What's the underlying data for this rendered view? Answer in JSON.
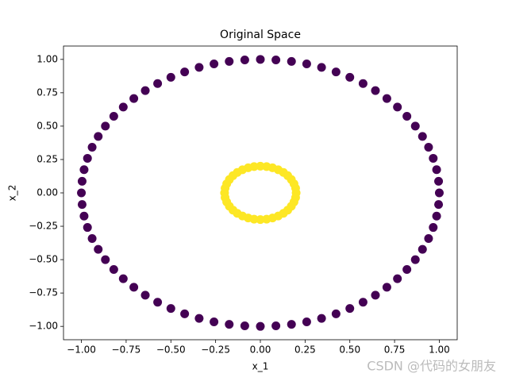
{
  "chart_data": {
    "type": "scatter",
    "title": "Original Space",
    "xlabel": "x_1",
    "ylabel": "x_2",
    "xlim": [
      -1.1,
      1.1
    ],
    "ylim": [
      -1.1,
      1.1
    ],
    "xticks": [
      {
        "value": -1,
        "label": "−1.00"
      },
      {
        "value": -0.75,
        "label": "−0.75"
      },
      {
        "value": -0.5,
        "label": "−0.50"
      },
      {
        "value": -0.25,
        "label": "−0.25"
      },
      {
        "value": 0,
        "label": "0.00"
      },
      {
        "value": 0.25,
        "label": "0.25"
      },
      {
        "value": 0.5,
        "label": "0.50"
      },
      {
        "value": 0.75,
        "label": "0.75"
      },
      {
        "value": 1,
        "label": "1.00"
      }
    ],
    "yticks": [
      {
        "value": -1,
        "label": "−1.00"
      },
      {
        "value": -0.75,
        "label": "−0.75"
      },
      {
        "value": -0.5,
        "label": "−0.50"
      },
      {
        "value": -0.25,
        "label": "−0.25"
      },
      {
        "value": 0,
        "label": "0.00"
      },
      {
        "value": 0.25,
        "label": "0.25"
      },
      {
        "value": 0.5,
        "label": "0.50"
      },
      {
        "value": 0.75,
        "label": "0.75"
      },
      {
        "value": 1,
        "label": "1.00"
      }
    ],
    "series": [
      {
        "color": "#440154",
        "x": [
          1,
          0.996,
          0.985,
          0.966,
          0.94,
          0.906,
          0.866,
          0.819,
          0.766,
          0.707,
          0.643,
          0.574,
          0.5,
          0.423,
          0.342,
          0.259,
          0.174,
          0.087,
          0,
          -0.087,
          -0.174,
          -0.259,
          -0.342,
          -0.423,
          -0.5,
          -0.574,
          -0.643,
          -0.707,
          -0.766,
          -0.819,
          -0.866,
          -0.906,
          -0.94,
          -0.966,
          -0.985,
          -0.996,
          -1,
          -0.996,
          -0.985,
          -0.966,
          -0.94,
          -0.906,
          -0.866,
          -0.819,
          -0.766,
          -0.707,
          -0.643,
          -0.574,
          -0.5,
          -0.423,
          -0.342,
          -0.259,
          -0.174,
          -0.087,
          0,
          0.087,
          0.174,
          0.259,
          0.342,
          0.423,
          0.5,
          0.574,
          0.643,
          0.707,
          0.766,
          0.819,
          0.866,
          0.906,
          0.94,
          0.966,
          0.985,
          0.996
        ],
        "y": [
          0,
          0.087,
          0.174,
          0.259,
          0.342,
          0.423,
          0.5,
          0.574,
          0.643,
          0.707,
          0.766,
          0.819,
          0.866,
          0.906,
          0.94,
          0.966,
          0.985,
          0.996,
          1,
          0.996,
          0.985,
          0.966,
          0.94,
          0.906,
          0.866,
          0.819,
          0.766,
          0.707,
          0.643,
          0.574,
          0.5,
          0.423,
          0.342,
          0.259,
          0.174,
          0.087,
          0,
          -0.087,
          -0.174,
          -0.259,
          -0.342,
          -0.423,
          -0.5,
          -0.574,
          -0.643,
          -0.707,
          -0.766,
          -0.819,
          -0.866,
          -0.906,
          -0.94,
          -0.966,
          -0.985,
          -0.996,
          -1,
          -0.996,
          -0.985,
          -0.966,
          -0.94,
          -0.906,
          -0.866,
          -0.819,
          -0.766,
          -0.707,
          -0.643,
          -0.574,
          -0.5,
          -0.423,
          -0.342,
          -0.259,
          -0.174,
          -0.087
        ]
      },
      {
        "color": "#fde725",
        "x": [
          0.2,
          0.197,
          0.188,
          0.173,
          0.153,
          0.129,
          0.1,
          0.068,
          0.035,
          0,
          -0.035,
          -0.068,
          -0.1,
          -0.129,
          -0.153,
          -0.173,
          -0.188,
          -0.197,
          -0.2,
          -0.197,
          -0.188,
          -0.173,
          -0.153,
          -0.129,
          -0.1,
          -0.068,
          -0.035,
          0,
          0.035,
          0.068,
          0.1,
          0.129,
          0.153,
          0.173,
          0.188,
          0.197
        ],
        "y": [
          0,
          0.035,
          0.068,
          0.1,
          0.129,
          0.153,
          0.173,
          0.188,
          0.197,
          0.2,
          0.197,
          0.188,
          0.173,
          0.153,
          0.129,
          0.1,
          0.068,
          0.035,
          0,
          -0.035,
          -0.068,
          -0.1,
          -0.129,
          -0.153,
          -0.173,
          -0.188,
          -0.197,
          -0.2,
          -0.197,
          -0.188,
          -0.173,
          -0.153,
          -0.129,
          -0.1,
          -0.068,
          -0.035
        ]
      }
    ],
    "watermark": "CSDN @代码的女朋友"
  }
}
